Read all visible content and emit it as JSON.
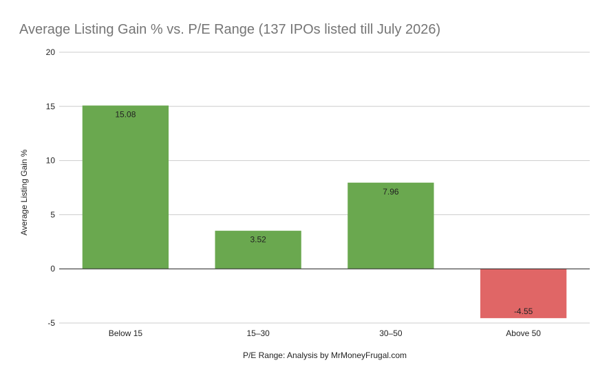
{
  "chart_data": {
    "type": "bar",
    "title": "Average Listing Gain % vs. P/E Range (137 IPOs listed till July 2026)",
    "xlabel": "P/E Range: Analysis by MrMoneyFrugal.com",
    "ylabel": "Average Listing Gain %",
    "categories": [
      "Below 15",
      "15–30",
      "30–50",
      "Above 50"
    ],
    "values": [
      15.08,
      3.52,
      7.96,
      -4.55
    ],
    "data_labels": [
      "15.08",
      "3.52",
      "7.96",
      "-4.55"
    ],
    "ylim": [
      -5,
      20
    ],
    "yticks": [
      -5,
      0,
      5,
      10,
      15,
      20
    ],
    "ytick_labels": [
      "-5",
      "0",
      "5",
      "10",
      "15",
      "20"
    ],
    "grid": true,
    "legend": "none",
    "colors": {
      "positive": "#6aa84f",
      "negative": "#e06666",
      "grid": "#cccccc",
      "zero_line": "#333333",
      "title": "#757575"
    }
  }
}
